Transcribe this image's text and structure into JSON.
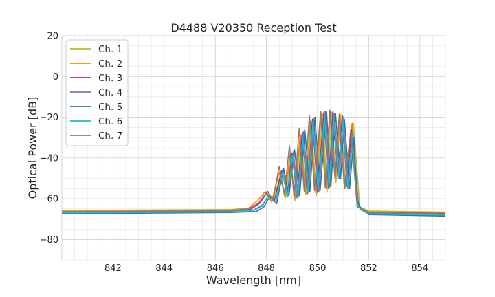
{
  "chart_data": {
    "type": "line",
    "title": "D4488 V20350 Reception Test",
    "xlabel": "Wavelength [nm]",
    "ylabel": "Optical Power [dB]",
    "xlim": [
      840,
      855
    ],
    "ylim": [
      -90,
      20
    ],
    "x_ticks": [
      842,
      844,
      846,
      848,
      850,
      852,
      854
    ],
    "x_tick_labels": [
      "842",
      "844",
      "846",
      "848",
      "850",
      "852",
      "854"
    ],
    "y_ticks": [
      -80,
      -60,
      -40,
      -20,
      0,
      20
    ],
    "y_tick_labels": [
      "−80",
      "−60",
      "−40",
      "−20",
      "0",
      "20"
    ],
    "grid": true,
    "grid_minor": true,
    "legend_position": "top-left",
    "series": [
      {
        "name": "Ch. 1",
        "color": "#bcbd22",
        "values": [
          [
            840,
            -65.8
          ],
          [
            846.6,
            -65.3
          ],
          [
            847.3,
            -64.6
          ],
          [
            847.7,
            -62.8
          ],
          [
            848.0,
            -57.5
          ],
          [
            848.25,
            -61.0
          ],
          [
            848.55,
            -48.5
          ],
          [
            848.75,
            -59.5
          ],
          [
            848.95,
            -40.0
          ],
          [
            849.12,
            -61.0
          ],
          [
            849.35,
            -29.0
          ],
          [
            849.55,
            -58.0
          ],
          [
            849.75,
            -22.5
          ],
          [
            849.95,
            -58.5
          ],
          [
            850.2,
            -18.5
          ],
          [
            850.37,
            -57.0
          ],
          [
            850.55,
            -17.5
          ],
          [
            850.72,
            -52.0
          ],
          [
            850.9,
            -19.0
          ],
          [
            851.1,
            -55.0
          ],
          [
            851.4,
            -23.0
          ],
          [
            851.65,
            -64.0
          ],
          [
            852.0,
            -66.0
          ],
          [
            855,
            -66.6
          ]
        ]
      },
      {
        "name": "Ch. 2",
        "color": "#ff7f0e",
        "values": [
          [
            840,
            -66.2
          ],
          [
            846.6,
            -65.6
          ],
          [
            847.3,
            -64.6
          ],
          [
            847.65,
            -61.0
          ],
          [
            847.95,
            -56.5
          ],
          [
            848.2,
            -61.5
          ],
          [
            848.5,
            -47.0
          ],
          [
            848.72,
            -59.0
          ],
          [
            848.92,
            -38.5
          ],
          [
            849.1,
            -60.0
          ],
          [
            849.32,
            -28.5
          ],
          [
            849.52,
            -57.5
          ],
          [
            849.72,
            -22.0
          ],
          [
            849.92,
            -57.0
          ],
          [
            850.15,
            -18.0
          ],
          [
            850.33,
            -55.0
          ],
          [
            850.5,
            -17.5
          ],
          [
            850.7,
            -50.0
          ],
          [
            850.88,
            -18.5
          ],
          [
            851.08,
            -53.5
          ],
          [
            851.35,
            -23.0
          ],
          [
            851.6,
            -64.0
          ],
          [
            852.0,
            -66.5
          ],
          [
            855,
            -67.0
          ]
        ]
      },
      {
        "name": "Ch. 3",
        "color": "#d62728",
        "values": [
          [
            840,
            -66.5
          ],
          [
            846.6,
            -66.0
          ],
          [
            847.4,
            -65.0
          ],
          [
            847.75,
            -62.0
          ],
          [
            848.05,
            -56.5
          ],
          [
            848.3,
            -61.5
          ],
          [
            848.6,
            -46.0
          ],
          [
            848.82,
            -58.5
          ],
          [
            849.0,
            -37.5
          ],
          [
            849.2,
            -59.5
          ],
          [
            849.4,
            -27.5
          ],
          [
            849.6,
            -57.5
          ],
          [
            849.8,
            -21.0
          ],
          [
            850.0,
            -57.0
          ],
          [
            850.25,
            -17.5
          ],
          [
            850.43,
            -55.0
          ],
          [
            850.6,
            -17.0
          ],
          [
            850.8,
            -50.0
          ],
          [
            850.97,
            -19.0
          ],
          [
            851.15,
            -54.0
          ],
          [
            851.32,
            -26.0
          ],
          [
            851.6,
            -64.0
          ],
          [
            852.0,
            -66.8
          ],
          [
            855,
            -67.3
          ]
        ]
      },
      {
        "name": "Ch. 4",
        "color": "#9467bd",
        "values": [
          [
            840,
            -66.8
          ],
          [
            846.6,
            -66.3
          ],
          [
            847.5,
            -65.5
          ],
          [
            847.85,
            -63.0
          ],
          [
            848.1,
            -58.0
          ],
          [
            848.35,
            -62.0
          ],
          [
            848.65,
            -45.5
          ],
          [
            848.85,
            -58.0
          ],
          [
            849.05,
            -37.0
          ],
          [
            849.25,
            -59.0
          ],
          [
            849.45,
            -27.0
          ],
          [
            849.65,
            -57.0
          ],
          [
            849.85,
            -20.5
          ],
          [
            850.05,
            -56.5
          ],
          [
            850.3,
            -17.0
          ],
          [
            850.48,
            -54.0
          ],
          [
            850.65,
            -18.0
          ],
          [
            850.85,
            -50.0
          ],
          [
            851.0,
            -20.0
          ],
          [
            851.2,
            -55.0
          ],
          [
            851.38,
            -28.0
          ],
          [
            851.6,
            -64.0
          ],
          [
            852.0,
            -67.2
          ],
          [
            855,
            -67.8
          ]
        ]
      },
      {
        "name": "Ch. 5",
        "color": "#1f77b4",
        "values": [
          [
            840,
            -67.4
          ],
          [
            846.6,
            -66.8
          ],
          [
            847.6,
            -66.3
          ],
          [
            847.9,
            -64.0
          ],
          [
            848.15,
            -58.5
          ],
          [
            848.4,
            -62.5
          ],
          [
            848.67,
            -45.0
          ],
          [
            848.88,
            -58.5
          ],
          [
            849.1,
            -36.0
          ],
          [
            849.3,
            -58.5
          ],
          [
            849.5,
            -26.0
          ],
          [
            849.7,
            -56.5
          ],
          [
            849.9,
            -20.0
          ],
          [
            850.1,
            -56.0
          ],
          [
            850.35,
            -17.0
          ],
          [
            850.52,
            -54.0
          ],
          [
            850.7,
            -18.0
          ],
          [
            850.9,
            -50.0
          ],
          [
            851.05,
            -21.0
          ],
          [
            851.25,
            -55.0
          ],
          [
            851.42,
            -30.0
          ],
          [
            851.55,
            -61.0
          ],
          [
            851.7,
            -65.0
          ],
          [
            852.0,
            -67.8
          ],
          [
            855,
            -68.5
          ]
        ]
      },
      {
        "name": "Ch. 6",
        "color": "#17becf",
        "values": [
          [
            840,
            -67.0
          ],
          [
            846.6,
            -66.5
          ],
          [
            847.5,
            -65.8
          ],
          [
            847.85,
            -63.5
          ],
          [
            848.1,
            -58.0
          ],
          [
            848.35,
            -62.0
          ],
          [
            848.62,
            -47.0
          ],
          [
            848.83,
            -59.0
          ],
          [
            849.02,
            -39.0
          ],
          [
            849.22,
            -59.5
          ],
          [
            849.42,
            -30.0
          ],
          [
            849.62,
            -57.0
          ],
          [
            849.82,
            -22.0
          ],
          [
            850.02,
            -56.5
          ],
          [
            850.27,
            -19.5
          ],
          [
            850.45,
            -55.0
          ],
          [
            850.62,
            -19.5
          ],
          [
            850.82,
            -50.0
          ],
          [
            850.98,
            -22.0
          ],
          [
            851.18,
            -55.0
          ],
          [
            851.35,
            -29.0
          ],
          [
            851.55,
            -62.5
          ],
          [
            851.7,
            -65.5
          ],
          [
            852.0,
            -67.5
          ],
          [
            855,
            -68.0
          ]
        ]
      },
      {
        "name": "Ch. 7",
        "color": "#7f7f7f",
        "values": [
          [
            840,
            -66.5
          ],
          [
            846.6,
            -66.0
          ],
          [
            847.3,
            -65.0
          ],
          [
            847.7,
            -62.0
          ],
          [
            848.0,
            -57.0
          ],
          [
            848.25,
            -61.0
          ],
          [
            848.5,
            -44.0
          ],
          [
            848.7,
            -58.0
          ],
          [
            848.9,
            -34.0
          ],
          [
            849.08,
            -59.0
          ],
          [
            849.28,
            -25.5
          ],
          [
            849.48,
            -56.5
          ],
          [
            849.68,
            -19.0
          ],
          [
            849.88,
            -56.0
          ],
          [
            850.12,
            -17.0
          ],
          [
            850.3,
            -54.5
          ],
          [
            850.48,
            -16.5
          ],
          [
            850.68,
            -50.0
          ],
          [
            850.85,
            -18.5
          ],
          [
            851.05,
            -55.0
          ],
          [
            851.3,
            -26.0
          ],
          [
            851.55,
            -64.0
          ],
          [
            852.0,
            -66.8
          ],
          [
            855,
            -67.5
          ]
        ]
      }
    ]
  }
}
